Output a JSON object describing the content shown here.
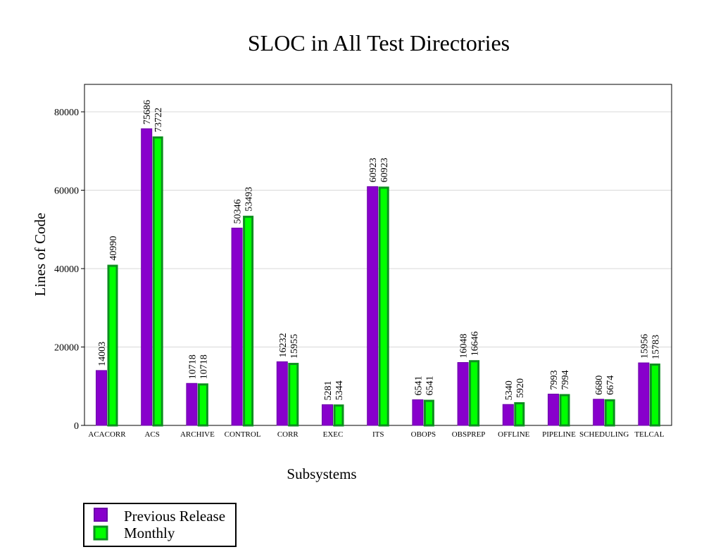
{
  "chart_data": {
    "type": "bar",
    "title": "SLOC in All Test Directories",
    "xlabel": "Subsystems",
    "ylabel": "Lines of Code",
    "ylim": [
      0,
      87000
    ],
    "yticks": [
      0,
      20000,
      40000,
      60000,
      80000
    ],
    "grid": true,
    "legend_position": "bottom-left",
    "categories": [
      "ACACORR",
      "ACS",
      "ARCHIVE",
      "CONTROL",
      "CORR",
      "EXEC",
      "ITS",
      "OBOPS",
      "OBSPREP",
      "OFFLINE",
      "PIPELINE",
      "SCHEDULING",
      "TELCAL"
    ],
    "series": [
      {
        "name": "Previous Release",
        "color": "#8800cc",
        "values": [
          14003,
          75686,
          10718,
          50346,
          16232,
          5281,
          60923,
          6541,
          16048,
          5340,
          7993,
          6680,
          15956
        ]
      },
      {
        "name": "Monthly",
        "color": "#00ff00",
        "values": [
          40990,
          73722,
          10718,
          53493,
          15955,
          5344,
          60923,
          6541,
          16646,
          5920,
          7994,
          6674,
          15783
        ]
      }
    ]
  }
}
